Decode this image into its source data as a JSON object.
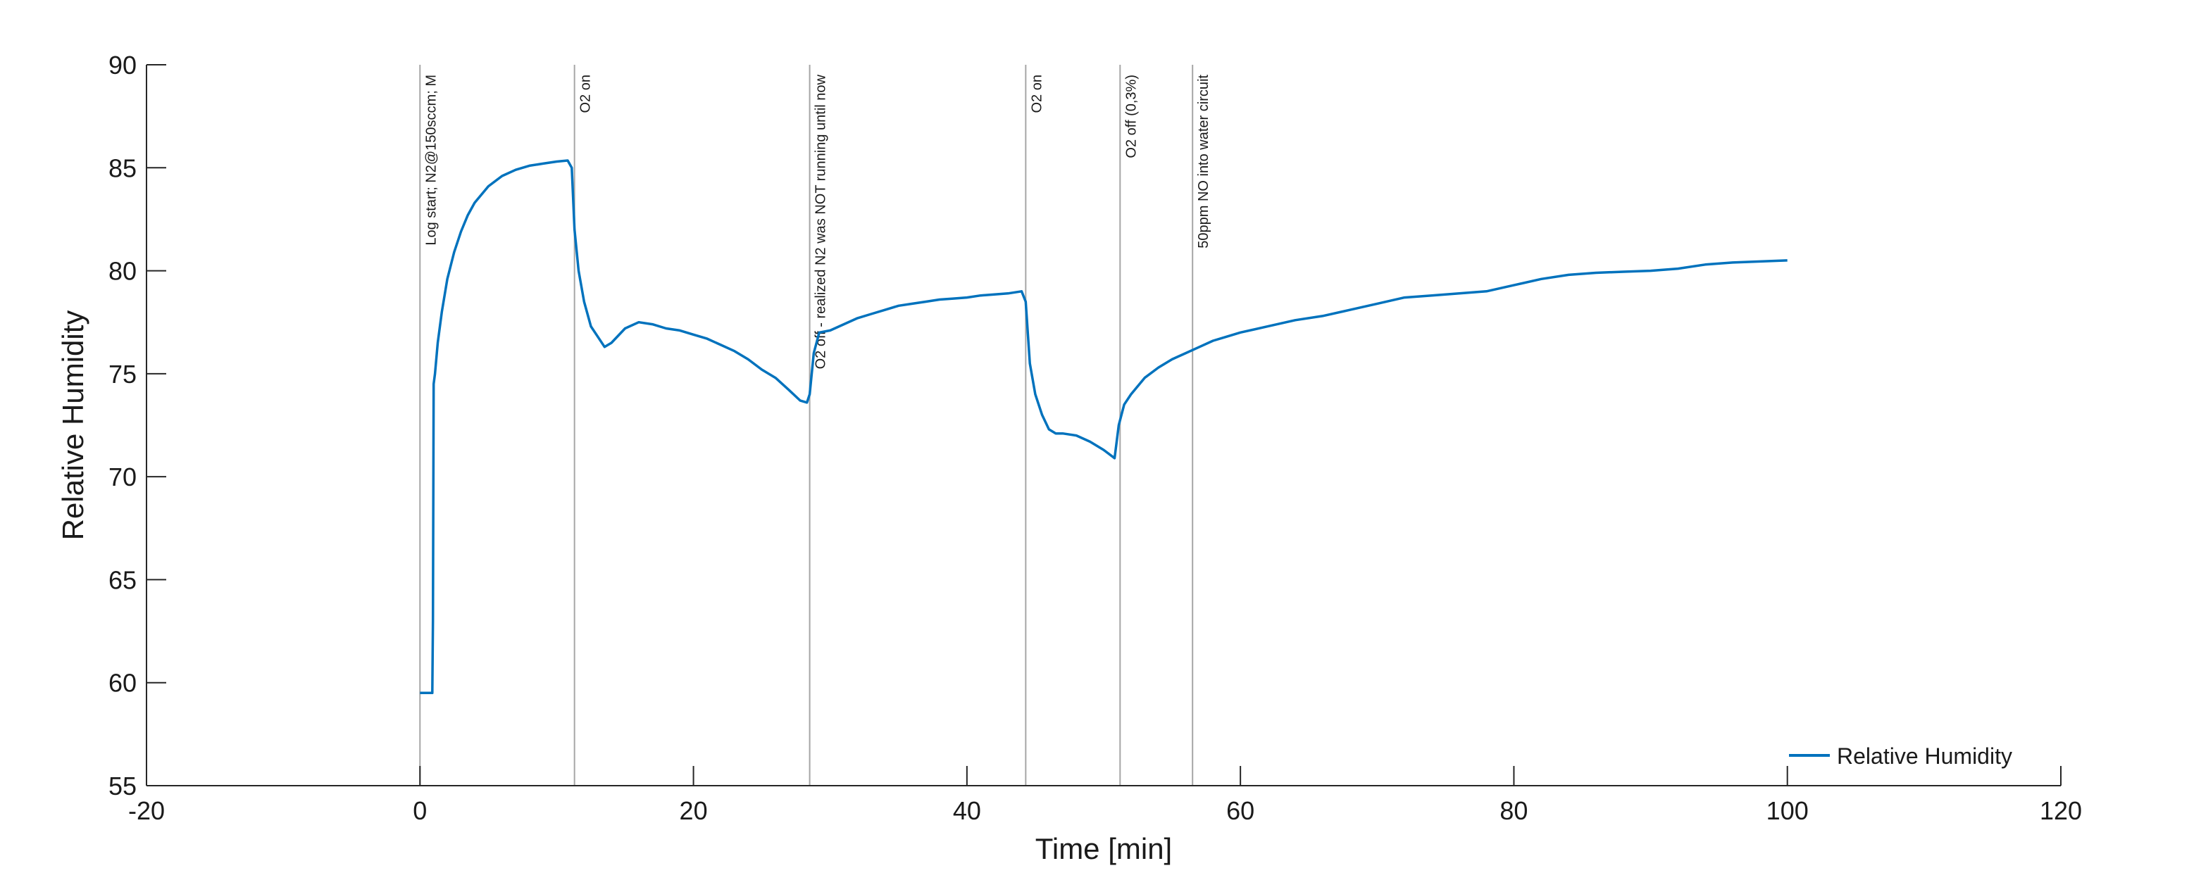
{
  "chart_data": {
    "type": "line",
    "title": "",
    "xlabel": "Time [min]",
    "ylabel": "Relative Humidity",
    "xlim": [
      -20,
      120
    ],
    "ylim": [
      55,
      90
    ],
    "x_ticks": [
      "-20",
      "0",
      "20",
      "40",
      "60",
      "80",
      "100",
      "120"
    ],
    "y_ticks": [
      "55",
      "60",
      "65",
      "70",
      "75",
      "80",
      "85",
      "90"
    ],
    "grid": false,
    "legend_position": "bottom-right",
    "colors": {
      "series": "#0072bd",
      "annotation_line": "#a6a6a6",
      "axis": "#262626"
    },
    "series": [
      {
        "name": "Relative Humidity",
        "x": [
          0,
          0.9,
          0.95,
          1.0,
          1.1,
          1.3,
          1.6,
          2.0,
          2.5,
          3.0,
          3.5,
          4.0,
          5.0,
          6.0,
          7.0,
          8.0,
          9.0,
          10.0,
          10.8,
          11.1,
          11.3,
          11.6,
          12.0,
          12.5,
          13.0,
          13.5,
          14.0,
          15.0,
          16.0,
          17.0,
          18.0,
          19.0,
          20.0,
          21.0,
          22.0,
          23.0,
          24.0,
          25.0,
          26.0,
          27.0,
          27.8,
          28.3,
          28.5,
          28.8,
          29.2,
          30.0,
          31.0,
          32.0,
          33.0,
          34.0,
          35.0,
          36.0,
          37.0,
          38.0,
          39.0,
          40.0,
          41.0,
          42.0,
          43.0,
          44.0,
          44.3,
          44.6,
          45.0,
          45.5,
          46.0,
          46.5,
          47.0,
          48.0,
          49.0,
          50.0,
          50.8,
          51.1,
          51.5,
          52.0,
          53.0,
          54.0,
          55.0,
          56.0,
          57.0,
          58.0,
          59.0,
          60.0,
          62.0,
          64.0,
          66.0,
          68.0,
          70.0,
          72.0,
          74.0,
          76.0,
          78.0,
          80.0,
          82.0,
          84.0,
          86.0,
          88.0,
          90.0,
          92.0,
          94.0,
          96.0,
          98.0,
          100.0
        ],
        "y": [
          59.5,
          59.5,
          63.0,
          74.5,
          75.0,
          76.5,
          78.0,
          79.6,
          80.9,
          81.9,
          82.7,
          83.3,
          84.1,
          84.6,
          84.9,
          85.1,
          85.2,
          85.3,
          85.35,
          85.0,
          82.0,
          80.0,
          78.5,
          77.3,
          76.8,
          76.3,
          76.5,
          77.2,
          77.5,
          77.4,
          77.2,
          77.1,
          76.9,
          76.7,
          76.4,
          76.1,
          75.7,
          75.2,
          74.8,
          74.2,
          73.7,
          73.6,
          74.0,
          76.0,
          77.0,
          77.1,
          77.4,
          77.7,
          77.9,
          78.1,
          78.3,
          78.4,
          78.5,
          78.6,
          78.65,
          78.7,
          78.8,
          78.85,
          78.9,
          79.0,
          78.5,
          75.5,
          74.0,
          73.0,
          72.3,
          72.1,
          72.1,
          72.0,
          71.7,
          71.3,
          70.9,
          72.5,
          73.5,
          74.0,
          74.8,
          75.3,
          75.7,
          76.0,
          76.3,
          76.6,
          76.8,
          77.0,
          77.3,
          77.6,
          77.8,
          78.1,
          78.4,
          78.7,
          78.8,
          78.9,
          79.0,
          79.3,
          79.6,
          79.8,
          79.9,
          79.95,
          80.0,
          80.1,
          80.3,
          80.4,
          80.45,
          80.5
        ]
      }
    ],
    "annotations": [
      {
        "x": 0,
        "label": "Log start; N2@150sccm; M"
      },
      {
        "x": 11.3,
        "label": "O2 on"
      },
      {
        "x": 28.5,
        "label": "O2 off - realized N2 was NOT running until now"
      },
      {
        "x": 44.3,
        "label": "O2 on"
      },
      {
        "x": 51.2,
        "label": "O2 off (0,3%)"
      },
      {
        "x": 56.5,
        "label": "50ppm NO into water circuit"
      }
    ]
  }
}
